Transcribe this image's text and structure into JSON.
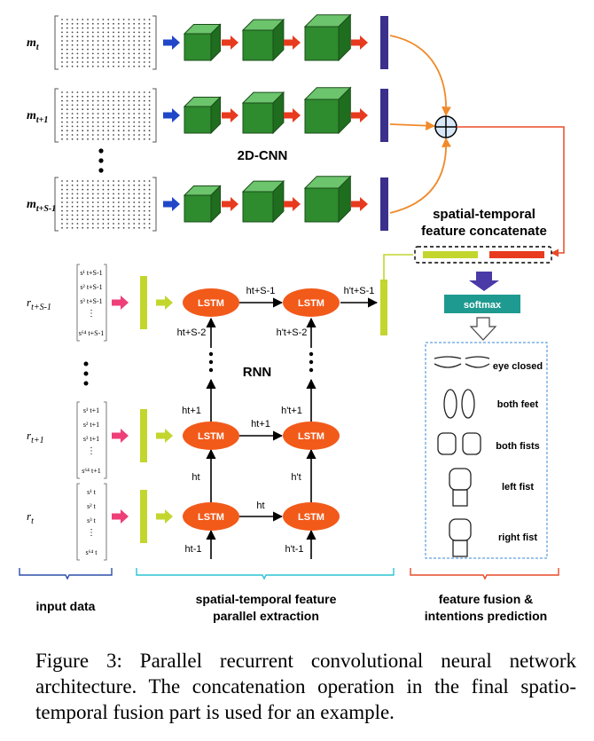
{
  "cnn_rows": [
    {
      "label_base": "m",
      "label_sub": "t"
    },
    {
      "label_base": "m",
      "label_sub": "t+1"
    },
    {
      "label_base": "m",
      "label_sub": "t+S-1"
    }
  ],
  "cnn_title": "2D-CNN",
  "concat_label_line1": "spatial-temporal",
  "concat_label_line2": "feature concatenate",
  "softmax_label": "softmax",
  "intentions": [
    "eye closed",
    "both feet",
    "both fists",
    "left fist",
    "right fist"
  ],
  "rnn_title": "RNN",
  "lstm_label": "LSTM",
  "rnn_inputs": [
    {
      "label_base": "r",
      "label_sub": "t+S-1",
      "signals": [
        "s¹ t+S-1",
        "s² t+S-1",
        "s³ t+S-1",
        "s⁶⁴ t+S-1"
      ]
    },
    {
      "label_base": "r",
      "label_sub": "t+1",
      "signals": [
        "s¹ t+1",
        "s² t+1",
        "s³ t+1",
        "s⁶⁴ t+1"
      ]
    },
    {
      "label_base": "r",
      "label_sub": "t",
      "signals": [
        "s¹ t",
        "s² t",
        "s³ t",
        "s⁶⁴ t"
      ]
    }
  ],
  "hidden_labels": {
    "top_h": "ht+S-1",
    "top_hp": "h't+S-1",
    "top_in": "ht+S-2",
    "top_inp": "h't+S-2",
    "mid_h": "ht+1",
    "mid_hp": "h't+1",
    "mid_in": "ht+1",
    "mid_inp": "h't+1",
    "bot_h": "ht",
    "bot_hp": "h't",
    "bot_in": "ht",
    "bot_inp": "h't",
    "bot_in2": "ht-1",
    "bot_inp2": "h't-1"
  },
  "sections": {
    "input": "input data",
    "extraction_line1": "spatial-temporal feature",
    "extraction_line2": "parallel extraction",
    "fusion_line1": "feature fusion &",
    "fusion_line2": "intentions prediction"
  },
  "caption": "Figure 3: Parallel recurrent convolutional neural network architecture. The concatenation operation in the final spatio-temporal fusion part is used for an example.",
  "colors": {
    "cube": "#2e8b2e",
    "arrow_blue": "#1f47c8",
    "arrow_red": "#e83a1e",
    "bar_navy": "#3a2f8c",
    "lime": "#c2d62e",
    "lstm": "#f25a1a",
    "softmax": "#1f9a90",
    "orange_line": "#f08a2a",
    "brace_blue": "#2b4fa8",
    "brace_cyan": "#2cc3d4",
    "brace_red": "#e84a2a"
  }
}
